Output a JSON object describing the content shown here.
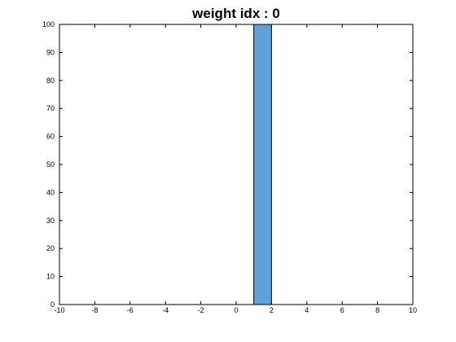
{
  "chart_data": {
    "type": "bar",
    "title": "weight idx : 0",
    "xlabel": "",
    "ylabel": "",
    "xlim": [
      -10,
      10
    ],
    "ylim": [
      0,
      100
    ],
    "x_ticks": [
      -10,
      -8,
      -6,
      -4,
      -2,
      0,
      2,
      4,
      6,
      8,
      10
    ],
    "y_ticks": [
      0,
      10,
      20,
      30,
      40,
      50,
      60,
      70,
      80,
      90,
      100
    ],
    "bins": [
      {
        "x_start": 1,
        "x_end": 2,
        "value": 100
      }
    ],
    "grid": false,
    "colors": {
      "bar_fill": "#5fa2d9",
      "bar_edge": "#000000",
      "axes": "#000000",
      "background": "#ffffff"
    }
  }
}
